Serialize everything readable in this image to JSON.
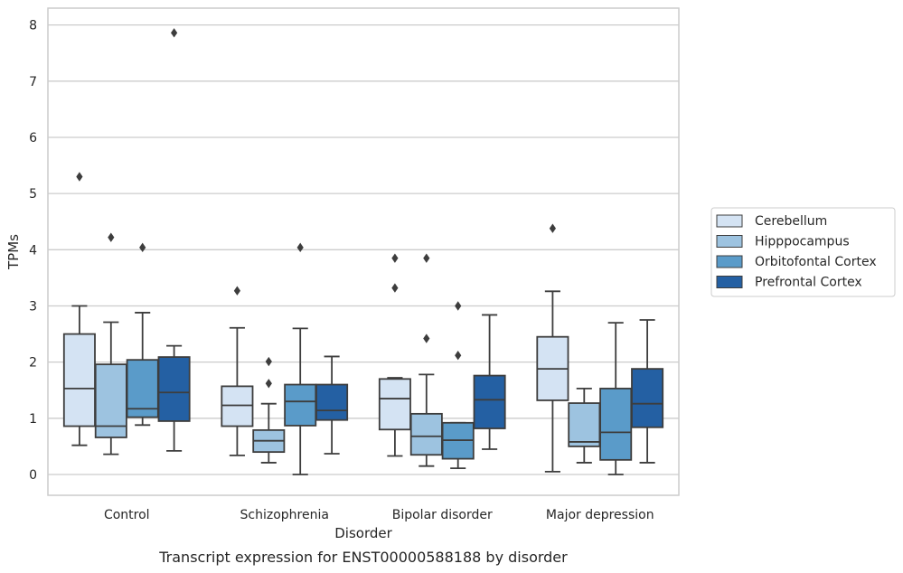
{
  "chart_data": {
    "type": "box",
    "caption": "Transcript expression for ENST00000588188 by disorder",
    "xlabel": "Disorder",
    "ylabel": "TPMs",
    "ylim": [
      -0.37,
      8.3
    ],
    "yticks": [
      0,
      1,
      2,
      3,
      4,
      5,
      6,
      7,
      8
    ],
    "grid": true,
    "legend_position": "right",
    "categories": [
      "Control",
      "Schizophrenia",
      "Bipolar disorder",
      "Major depression"
    ],
    "series": [
      {
        "name": "Cerebellum",
        "color": "#d4e3f3",
        "boxes": [
          {
            "whisker_low": 0.52,
            "q1": 0.86,
            "median": 1.53,
            "q3": 2.5,
            "whisker_high": 3.0,
            "outliers": [
              5.3
            ]
          },
          {
            "whisker_low": 0.34,
            "q1": 0.86,
            "median": 1.23,
            "q3": 1.57,
            "whisker_high": 2.61,
            "outliers": [
              3.27
            ]
          },
          {
            "whisker_low": 0.33,
            "q1": 0.8,
            "median": 1.35,
            "q3": 1.7,
            "whisker_high": 1.72,
            "outliers": [
              3.85,
              3.32
            ]
          },
          {
            "whisker_low": 0.05,
            "q1": 1.32,
            "median": 1.88,
            "q3": 2.45,
            "whisker_high": 3.26,
            "outliers": [
              4.38
            ]
          }
        ]
      },
      {
        "name": "Hipppocampus",
        "color": "#9dc3e0",
        "boxes": [
          {
            "whisker_low": 0.36,
            "q1": 0.66,
            "median": 0.86,
            "q3": 1.96,
            "whisker_high": 2.71,
            "outliers": [
              4.22
            ]
          },
          {
            "whisker_low": 0.21,
            "q1": 0.4,
            "median": 0.6,
            "q3": 0.79,
            "whisker_high": 1.26,
            "outliers": [
              2.01,
              1.62
            ]
          },
          {
            "whisker_low": 0.15,
            "q1": 0.35,
            "median": 0.68,
            "q3": 1.08,
            "whisker_high": 1.78,
            "outliers": [
              3.85,
              2.42
            ]
          },
          {
            "whisker_low": 0.21,
            "q1": 0.5,
            "median": 0.58,
            "q3": 1.27,
            "whisker_high": 1.53,
            "outliers": []
          }
        ]
      },
      {
        "name": "Orbitofontal Cortex",
        "color": "#5a9bc9",
        "boxes": [
          {
            "whisker_low": 0.88,
            "q1": 1.02,
            "median": 1.17,
            "q3": 2.04,
            "whisker_high": 2.88,
            "outliers": [
              4.04
            ]
          },
          {
            "whisker_low": 0.0,
            "q1": 0.87,
            "median": 1.3,
            "q3": 1.6,
            "whisker_high": 2.6,
            "outliers": [
              4.04
            ]
          },
          {
            "whisker_low": 0.11,
            "q1": 0.28,
            "median": 0.61,
            "q3": 0.92,
            "whisker_high": 0.92,
            "outliers": [
              3.0,
              2.12
            ]
          },
          {
            "whisker_low": 0.0,
            "q1": 0.26,
            "median": 0.75,
            "q3": 1.53,
            "whisker_high": 2.7,
            "outliers": []
          }
        ]
      },
      {
        "name": "Prefrontal Cortex",
        "color": "#2460a3",
        "boxes": [
          {
            "whisker_low": 0.42,
            "q1": 0.95,
            "median": 1.46,
            "q3": 2.09,
            "whisker_high": 2.29,
            "outliers": [
              7.86
            ]
          },
          {
            "whisker_low": 0.37,
            "q1": 0.97,
            "median": 1.14,
            "q3": 1.6,
            "whisker_high": 2.1,
            "outliers": []
          },
          {
            "whisker_low": 0.45,
            "q1": 0.82,
            "median": 1.33,
            "q3": 1.76,
            "whisker_high": 2.84,
            "outliers": []
          },
          {
            "whisker_low": 0.21,
            "q1": 0.84,
            "median": 1.26,
            "q3": 1.88,
            "whisker_high": 2.75,
            "outliers": []
          }
        ]
      }
    ]
  }
}
